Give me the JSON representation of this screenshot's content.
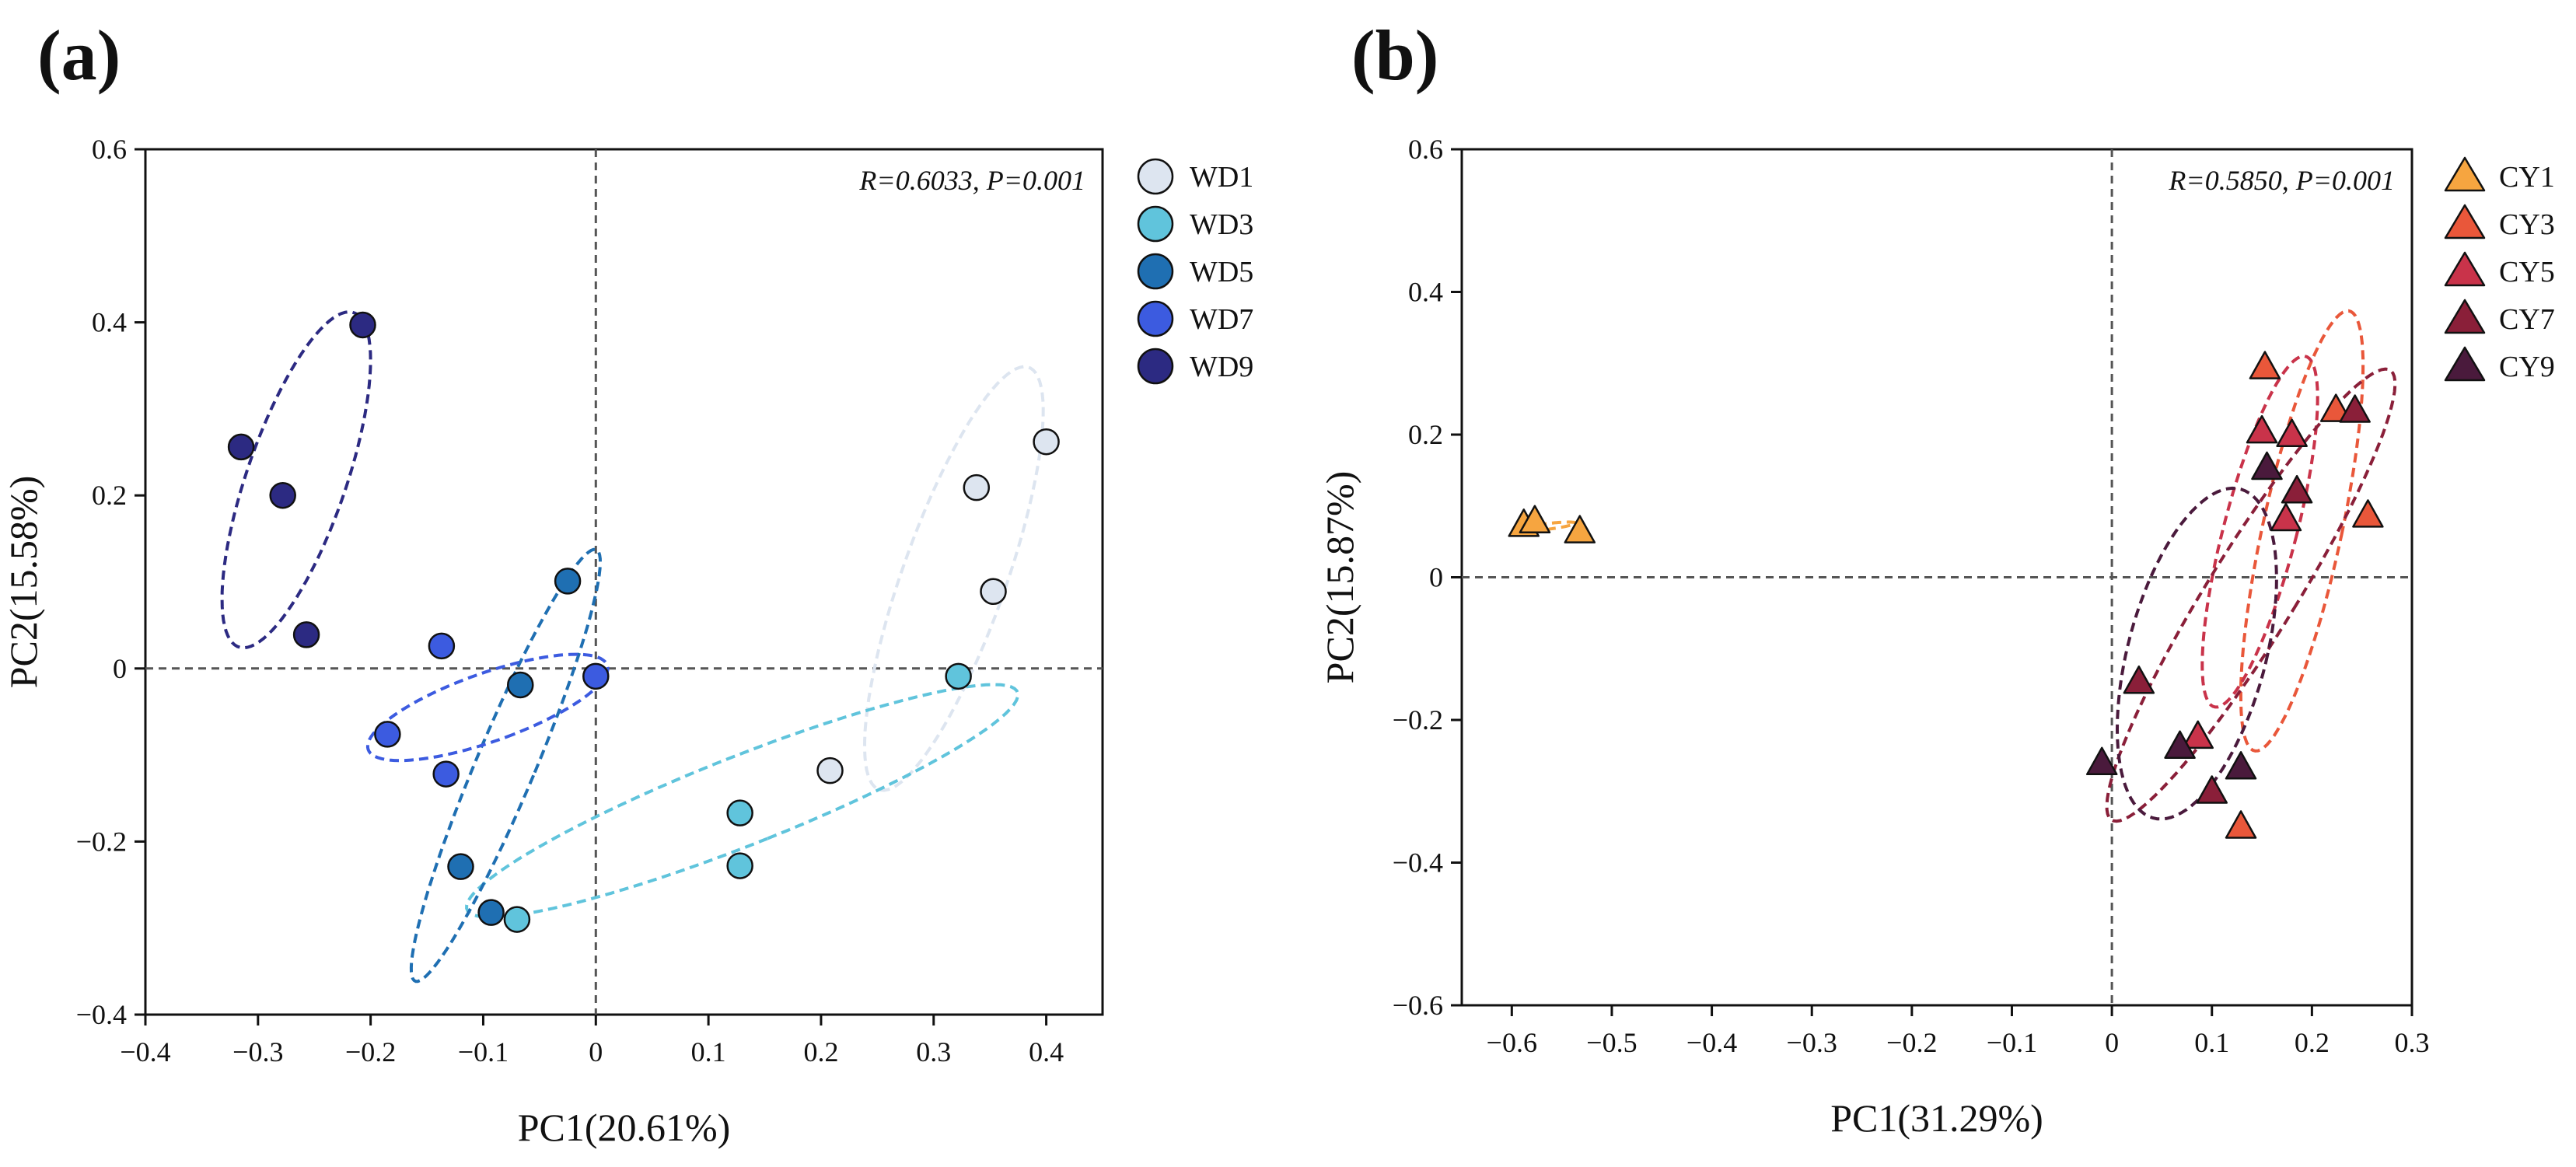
{
  "chart_data": [
    {
      "panel": "(a)",
      "type": "scatter",
      "xlabel": "PC1(20.61%)",
      "ylabel": "PC2(15.58%)",
      "xlim": [
        -0.4,
        0.45
      ],
      "ylim": [
        -0.4,
        0.6
      ],
      "xticks": [
        -0.4,
        -0.3,
        -0.2,
        -0.1,
        0,
        0.1,
        0.2,
        0.3,
        0.4
      ],
      "xtick_labels": [
        "−0.4",
        "−0.3",
        "−0.2",
        "−0.1",
        "0",
        "0.1",
        "0.2",
        "0.3",
        "0.4"
      ],
      "yticks": [
        -0.4,
        -0.2,
        0,
        0.2,
        0.4,
        0.6
      ],
      "ytick_labels": [
        "−0.4",
        "−0.2",
        "0",
        "0.2",
        "0.4",
        "0.6"
      ],
      "annotation": "R=0.6033, P=0.001",
      "marker": "circle",
      "legend_position": "right",
      "series": [
        {
          "name": "WD1",
          "color": "#dde5f0",
          "points": [
            [
              0.338,
              0.209
            ],
            [
              0.4,
              0.262
            ],
            [
              0.353,
              0.089
            ],
            [
              0.208,
              -0.118
            ]
          ],
          "ellipse": {
            "center": [
              0.318,
              0.104
            ],
            "rx": 0.047,
            "ry": 0.253,
            "angle": 0.26
          }
        },
        {
          "name": "WD3",
          "color": "#60c4dc",
          "points": [
            [
              0.322,
              -0.009
            ],
            [
              0.128,
              -0.167
            ],
            [
              0.128,
              -0.228
            ],
            [
              -0.07,
              -0.29
            ]
          ],
          "ellipse": {
            "center": [
              0.13,
              -0.153
            ],
            "rx": 0.049,
            "ry": 0.275,
            "angle": 1.09
          }
        },
        {
          "name": "WD5",
          "color": "#1f6fb2",
          "points": [
            [
              -0.025,
              0.101
            ],
            [
              -0.067,
              -0.019
            ],
            [
              -0.12,
              -0.229
            ],
            [
              -0.093,
              -0.282
            ]
          ],
          "ellipse": {
            "center": [
              -0.08,
              -0.112
            ],
            "rx": 0.027,
            "ry": 0.262,
            "angle": 0.31
          }
        },
        {
          "name": "WD7",
          "color": "#3c5be0",
          "points": [
            [
              -0.137,
              0.026
            ],
            [
              0.0,
              -0.009
            ],
            [
              -0.185,
              -0.076
            ],
            [
              -0.133,
              -0.122
            ]
          ],
          "ellipse": {
            "center": [
              -0.096,
              -0.045
            ],
            "rx": 0.038,
            "ry": 0.117,
            "angle": 1.12
          }
        },
        {
          "name": "WD9",
          "color": "#2c2a82",
          "points": [
            [
              -0.207,
              0.397
            ],
            [
              -0.315,
              0.256
            ],
            [
              -0.278,
              0.2
            ],
            [
              -0.257,
              0.039
            ]
          ],
          "ellipse": {
            "center": [
              -0.266,
              0.218
            ],
            "rx": 0.045,
            "ry": 0.2,
            "angle": 0.25
          }
        }
      ]
    },
    {
      "panel": "(b)",
      "type": "scatter",
      "xlabel": "PC1(31.29%)",
      "ylabel": "PC2(15.87%)",
      "xlim": [
        -0.65,
        0.3
      ],
      "ylim": [
        -0.6,
        0.6
      ],
      "xticks": [
        -0.6,
        -0.5,
        -0.4,
        -0.3,
        -0.2,
        -0.1,
        0,
        0.1,
        0.2,
        0.3
      ],
      "xtick_labels": [
        "−0.6",
        "−0.5",
        "−0.4",
        "−0.3",
        "−0.2",
        "−0.1",
        "0",
        "0.1",
        "0.2",
        "0.3"
      ],
      "yticks": [
        -0.6,
        -0.4,
        -0.2,
        0,
        0.2,
        0.4,
        0.6
      ],
      "ytick_labels": [
        "−0.6",
        "−0.4",
        "−0.2",
        "0",
        "0.2",
        "0.4",
        "0.6"
      ],
      "annotation": "R=0.5850, P=0.001",
      "marker": "triangle",
      "legend_position": "right",
      "series": [
        {
          "name": "CY1",
          "color": "#f6a540",
          "points": [
            [
              -0.588,
              0.072
            ],
            [
              -0.577,
              0.077
            ],
            [
              -0.532,
              0.063
            ]
          ],
          "ellipse": {
            "center": [
              -0.566,
              0.071
            ],
            "rx": 0.004,
            "ry": 0.03,
            "angle": 1.4
          }
        },
        {
          "name": "CY3",
          "color": "#e9573a",
          "points": [
            [
              0.153,
              0.293
            ],
            [
              0.224,
              0.233
            ],
            [
              0.256,
              0.085
            ],
            [
              0.129,
              -0.351
            ]
          ],
          "ellipse": {
            "center": [
              0.19,
              0.065
            ],
            "rx": 0.04,
            "ry": 0.312,
            "angle": 0.15
          }
        },
        {
          "name": "CY5",
          "color": "#c9334a",
          "points": [
            [
              0.15,
              0.203
            ],
            [
              0.18,
              0.198
            ],
            [
              0.174,
              0.08
            ],
            [
              0.086,
              -0.225
            ]
          ],
          "ellipse": {
            "center": [
              0.148,
              0.064
            ],
            "rx": 0.037,
            "ry": 0.25,
            "angle": 0.18
          }
        },
        {
          "name": "CY7",
          "color": "#8a1f39",
          "points": [
            [
              0.243,
              0.232
            ],
            [
              0.185,
              0.119
            ],
            [
              0.027,
              -0.148
            ],
            [
              0.1,
              -0.302
            ]
          ],
          "ellipse": {
            "center": [
              0.139,
              -0.025
            ],
            "rx": 0.047,
            "ry": 0.345,
            "angle": 0.41
          }
        },
        {
          "name": "CY9",
          "color": "#4a1a3c",
          "points": [
            [
              0.155,
              0.152
            ],
            [
              -0.01,
              -0.262
            ],
            [
              0.068,
              -0.239
            ],
            [
              0.129,
              -0.268
            ]
          ],
          "ellipse": {
            "center": [
              0.085,
              -0.107
            ],
            "rx": 0.07,
            "ry": 0.235,
            "angle": 0.17
          }
        }
      ]
    }
  ]
}
